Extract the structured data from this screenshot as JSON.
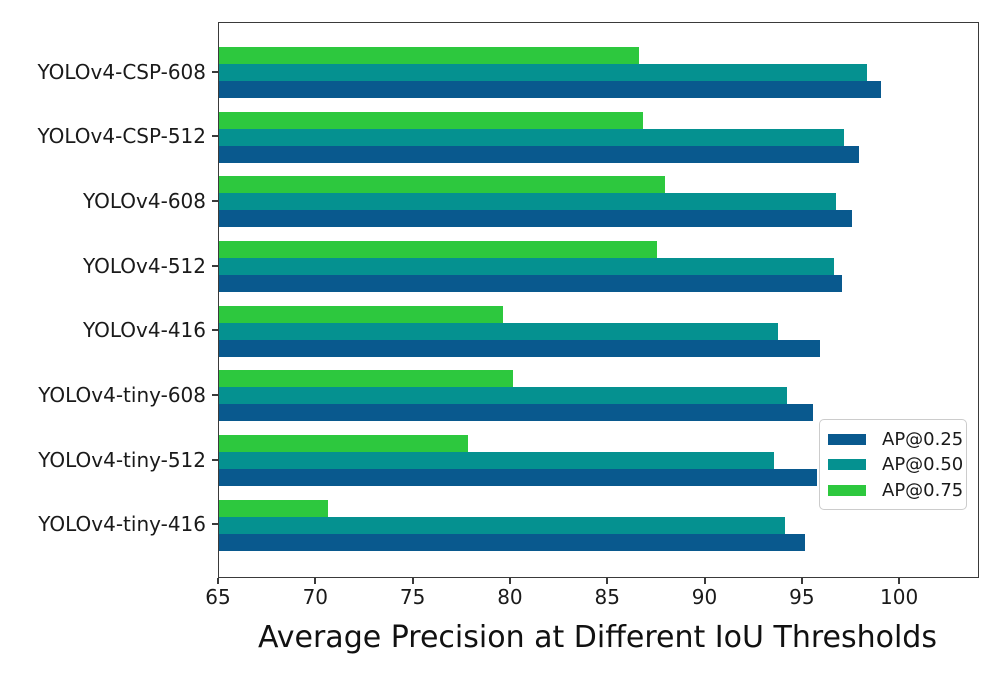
{
  "chart_data": {
    "type": "bar",
    "orientation": "horizontal",
    "xlabel": "Average Precision at Different IoU Thresholds",
    "categories": [
      "YOLOv4-CSP-608",
      "YOLOv4-CSP-512",
      "YOLOv4-608",
      "YOLOv4-512",
      "YOLOv4-416",
      "YOLOv4-tiny-608",
      "YOLOv4-tiny-512",
      "YOLOv4-tiny-416"
    ],
    "series": [
      {
        "name": "AP@0.25",
        "color": "#09598e",
        "values": [
          99.0,
          97.9,
          97.5,
          97.0,
          95.9,
          95.5,
          95.7,
          95.1
        ]
      },
      {
        "name": "AP@0.50",
        "color": "#059190",
        "values": [
          98.3,
          97.1,
          96.7,
          96.6,
          93.7,
          94.2,
          93.5,
          94.1
        ]
      },
      {
        "name": "AP@0.75",
        "color": "#2dc83e",
        "values": [
          86.6,
          86.8,
          87.9,
          87.5,
          79.6,
          80.1,
          77.8,
          70.6
        ]
      }
    ],
    "xlim": [
      65,
      104
    ],
    "xticks": [
      "65",
      "70",
      "75",
      "80",
      "85",
      "90",
      "95",
      "100"
    ],
    "grid": false,
    "legend_position": "inside-right",
    "bar_order_within_group_top_to_bottom": [
      "AP@0.75",
      "AP@0.50",
      "AP@0.25"
    ]
  }
}
